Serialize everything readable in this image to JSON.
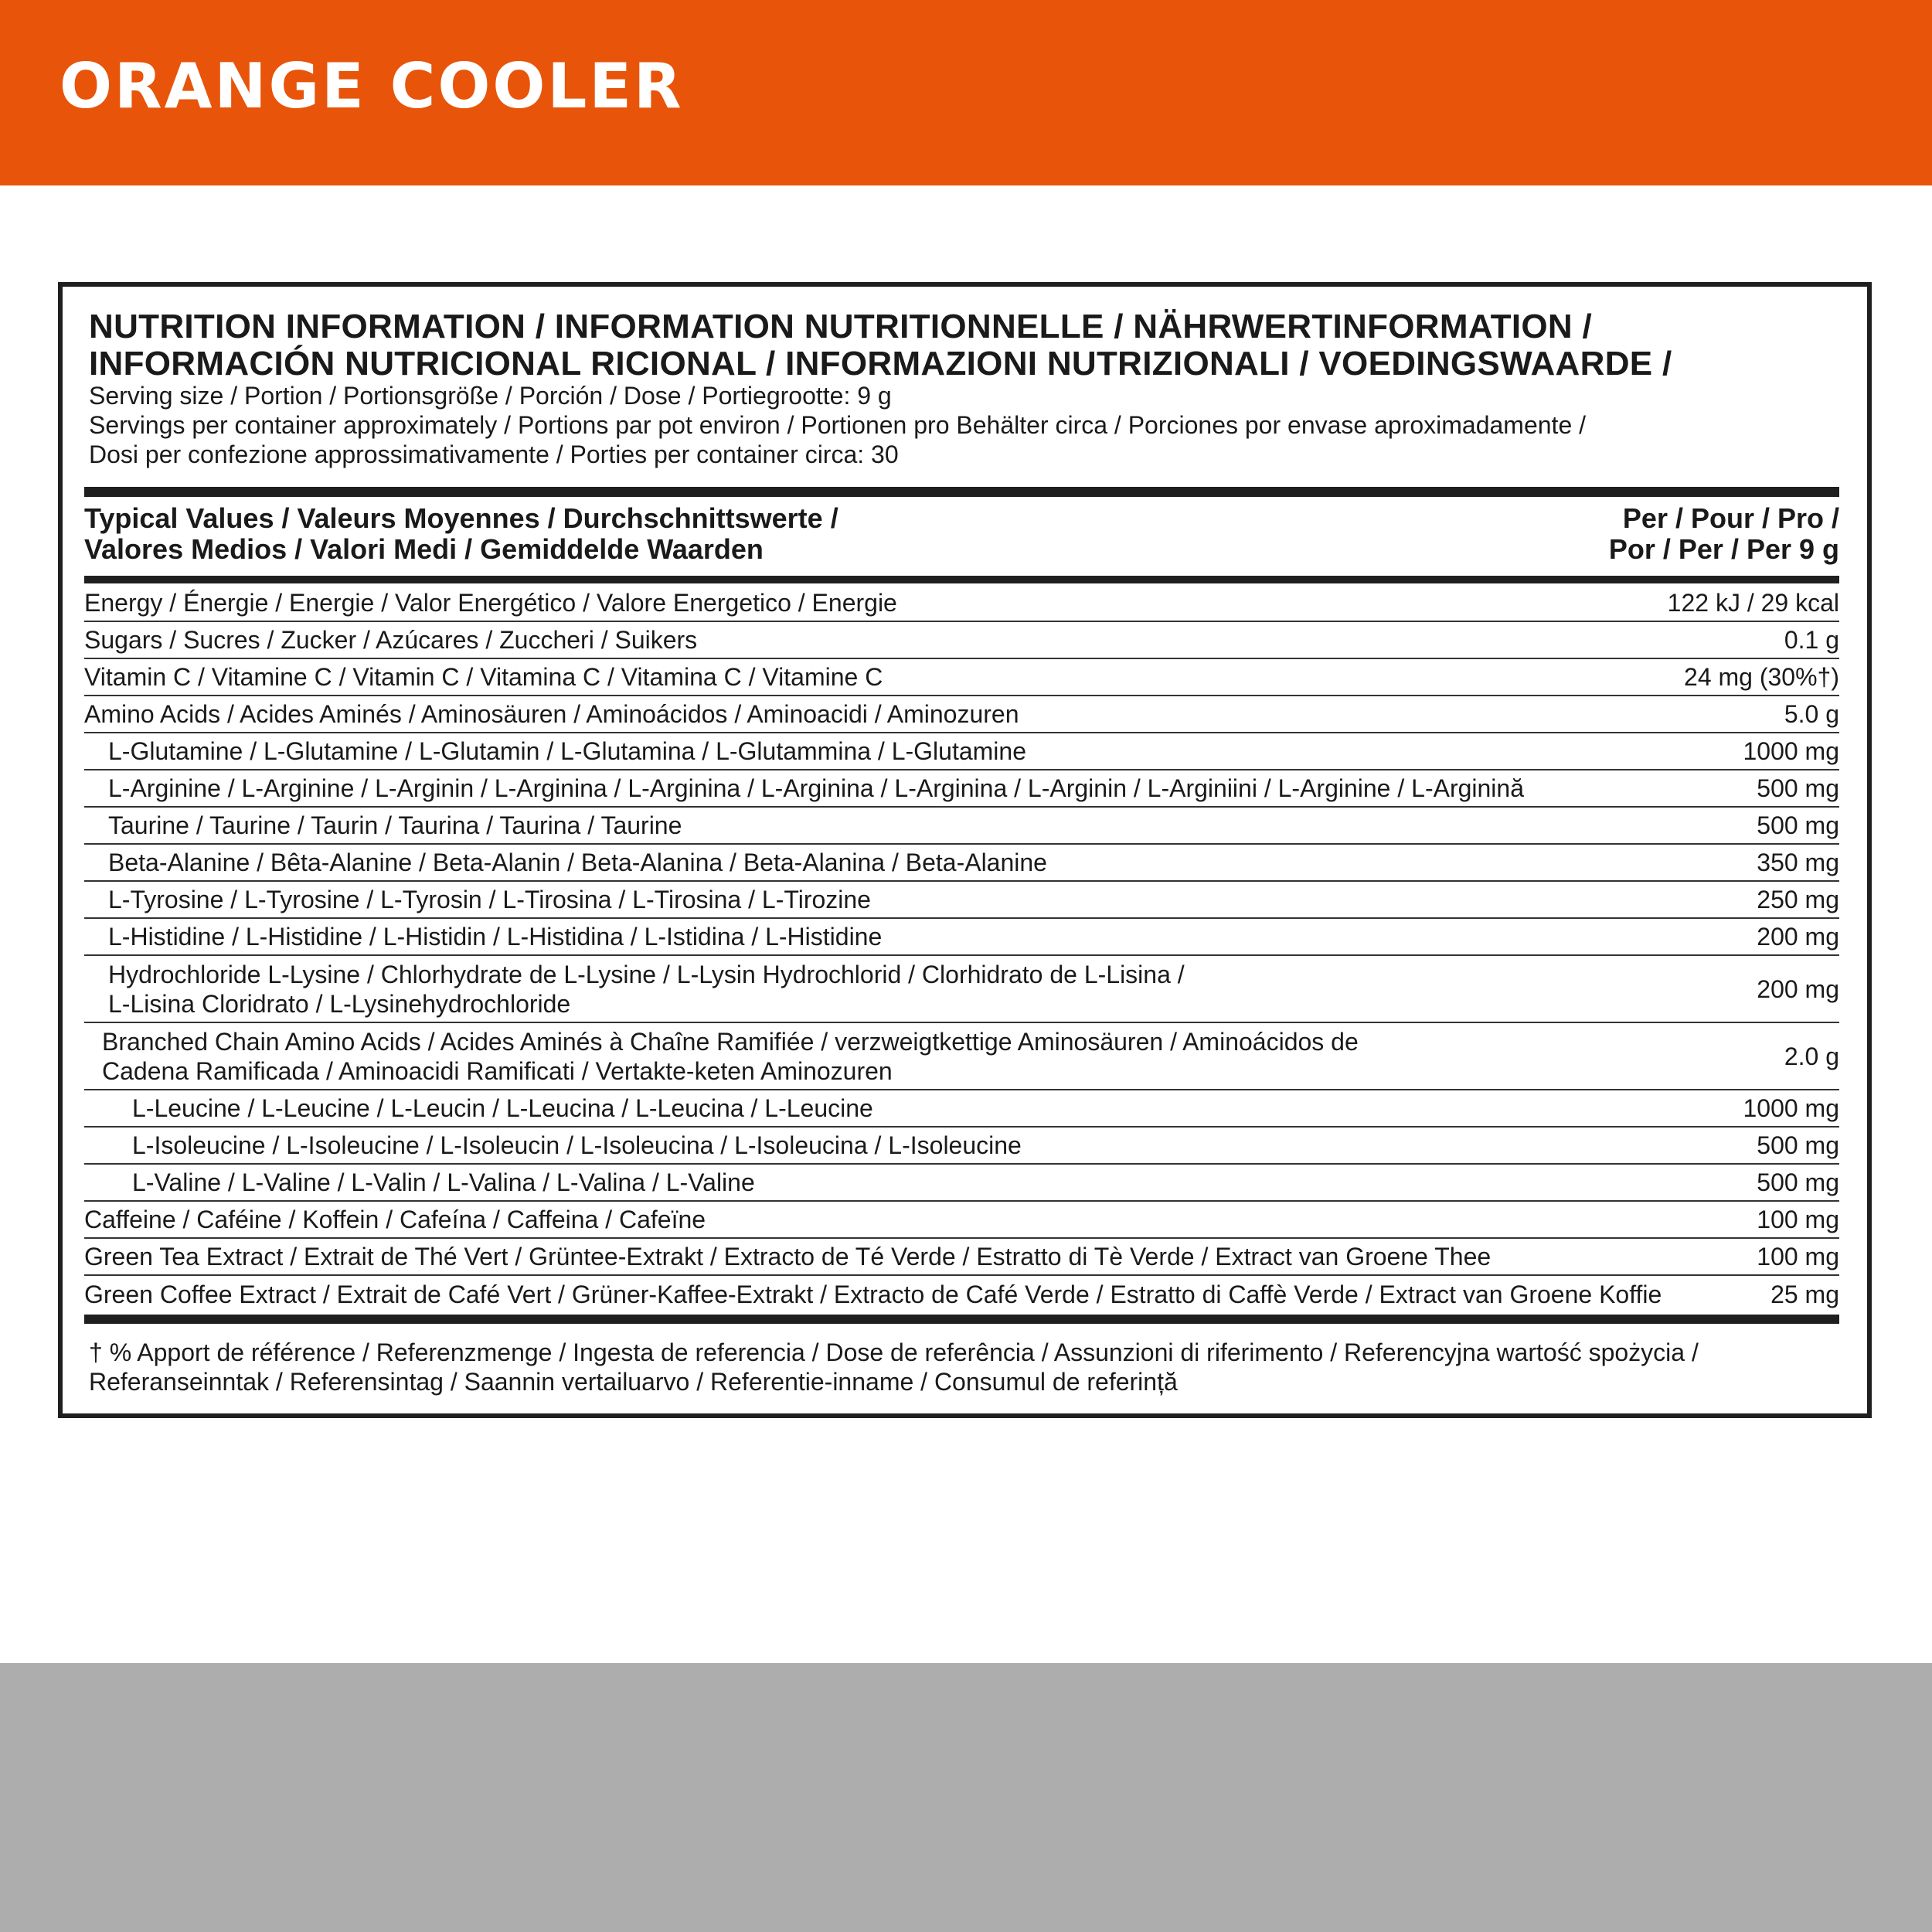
{
  "header": {
    "flavor": "ORANGE COOLER",
    "brand_color": "#E8540A"
  },
  "panel": {
    "title_line1": "NUTRITION INFORMATION / INFORMATION NUTRITIONNELLE / NÄHRWERTINFORMATION /",
    "title_line2": "INFORMACIÓN NUTRICIONAL RICIONAL / INFORMAZIONI NUTRIZIONALI / VOEDINGSWAARDE /",
    "serving_line1": "Serving size / Portion / Portionsgröße / Porción / Dose / Portiegrootte: 9 g",
    "serving_line2": "Servings per container approximately / Portions par pot environ / Portionen pro Behälter circa / Porciones por envase aproximadamente /",
    "serving_line3": "Dosi per confezione approssimativamente / Porties per container circa: 30",
    "col_label_line1": "Typical Values / Valeurs Moyennes / Durchschnittswerte /",
    "col_label_line2": "Valores Medios / Valori Medi / Gemiddelde Waarden",
    "col_value_line1": "Per / Pour / Pro /",
    "col_value_line2": "Por / Per / Per 9 g",
    "rows": [
      {
        "label": "Energy / Énergie / Energie / Valor Energético / Valore Energetico / Energie",
        "value": "122 kJ / 29 kcal",
        "indent": 0
      },
      {
        "label": "Sugars / Sucres / Zucker / Azúcares / Zuccheri / Suikers",
        "value": "0.1 g",
        "indent": 0
      },
      {
        "label": "Vitamin C / Vitamine C / Vitamin C / Vitamina C / Vitamina C / Vitamine C",
        "value": "24 mg (30%†)",
        "indent": 0
      },
      {
        "label": "Amino Acids / Acides Aminés / Aminosäuren / Aminoácidos / Aminoacidi / Aminozuren",
        "value": "5.0 g",
        "indent": 0
      },
      {
        "label": "L-Glutamine / L-Glutamine / L-Glutamin / L-Glutamina / L-Glutammina / L-Glutamine",
        "value": "1000 mg",
        "indent": 1
      },
      {
        "label": "L-Arginine / L-Arginine / L-Arginin / L-Arginina / L-Arginina / L-Arginina / L-Arginina / L-Arginin / L-Arginiini / L-Arginine / L-Arginină",
        "value": "500 mg",
        "indent": 1
      },
      {
        "label": "Taurine / Taurine / Taurin / Taurina / Taurina / Taurine",
        "value": "500 mg",
        "indent": 1
      },
      {
        "label": "Beta-Alanine / Bêta-Alanine / Beta-Alanin / Beta-Alanina / Beta-Alanina / Beta-Alanine",
        "value": "350 mg",
        "indent": 1
      },
      {
        "label": "L-Tyrosine / L-Tyrosine / L-Tyrosin / L-Tirosina / L-Tirosina / L-Tirozine",
        "value": "250 mg",
        "indent": 1
      },
      {
        "label": "L-Histidine / L-Histidine / L-Histidin / L-Histidina / L-Istidina  / L-Histidine",
        "value": "200 mg",
        "indent": 1
      },
      {
        "label": "Hydrochloride L-Lysine / Chlorhydrate de L-Lysine / L-Lysin Hydrochlorid / Clorhidrato de L-Lisina /\nL-Lisina Cloridrato / L-Lysinehydrochloride",
        "value": "200 mg",
        "indent": 1
      },
      {
        "label": "Branched Chain Amino Acids / Acides Aminés à Chaîne Ramifiée / verzweigtkettige Aminosäuren / Aminoácidos de\nCadena Ramificada / Aminoacidi Ramificati / Vertakte-keten Aminozuren",
        "value": "2.0 g",
        "indent": 2
      },
      {
        "label": "L-Leucine / L-Leucine / L-Leucin / L-Leucina / L-Leucina / L-Leucine",
        "value": "1000 mg",
        "indent": 3
      },
      {
        "label": "L-Isoleucine / L-Isoleucine / L-Isoleucin / L-Isoleucina / L-Isoleucina / L-Isoleucine",
        "value": "500 mg",
        "indent": 3
      },
      {
        "label": "L-Valine / L-Valine / L-Valin / L-Valina / L-Valina / L-Valine",
        "value": "500 mg",
        "indent": 3
      },
      {
        "label": "Caffeine / Caféine / Koffein / Cafeína / Caffeina / Cafeïne",
        "value": "100 mg",
        "indent": 0
      },
      {
        "label": "Green Tea Extract / Extrait de Thé Vert / Grüntee-Extrakt / Extracto de Té Verde / Estratto di Tè Verde / Extract van Groene Thee",
        "value": "100 mg",
        "indent": 0
      },
      {
        "label": "Green Coffee Extract / Extrait de Café Vert / Grüner-Kaffee-Extrakt / Extracto de Café Verde / Estratto di Caffè Verde / Extract van Groene Koffie",
        "value": "25 mg",
        "indent": 0
      }
    ],
    "footnote": "† % Apport de référence / Referenzmenge / Ingesta de referencia / Dose de referência / Assunzioni di riferimento / Referencyjna wartość spożycia /\nReferanseinntak / Referensintag / Saannin vertailuarvo / Referentie-inname / Consumul de referință"
  }
}
